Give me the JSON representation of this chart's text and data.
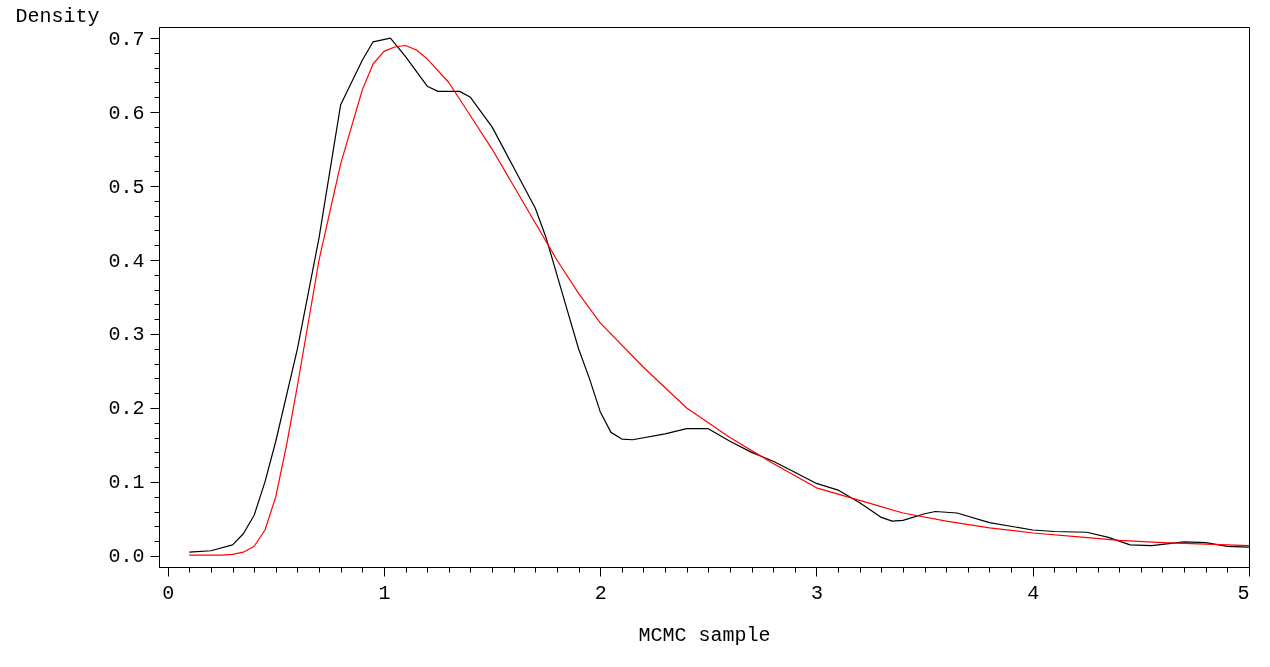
{
  "chart_data": {
    "type": "line",
    "xlabel": "MCMC sample",
    "ylabel": "Density",
    "xlim": [
      -0.04,
      5.0
    ],
    "ylim": [
      -0.015,
      0.715
    ],
    "xticks": [
      0,
      {
        "value": 0.1,
        "label": null
      },
      {
        "value": 0.2,
        "label": null
      },
      {
        "value": 0.3,
        "label": null
      },
      {
        "value": 0.4,
        "label": null
      },
      {
        "value": 0.5,
        "label": null
      },
      {
        "value": 0.6,
        "label": null
      },
      {
        "value": 0.7,
        "label": null
      },
      {
        "value": 0.8,
        "label": null
      },
      {
        "value": 0.9,
        "label": null
      },
      1,
      {
        "value": 1.1,
        "label": null
      },
      {
        "value": 1.2,
        "label": null
      },
      {
        "value": 1.3,
        "label": null
      },
      {
        "value": 1.4,
        "label": null
      },
      {
        "value": 1.5,
        "label": null
      },
      {
        "value": 1.6,
        "label": null
      },
      {
        "value": 1.7,
        "label": null
      },
      {
        "value": 1.8,
        "label": null
      },
      {
        "value": 1.9,
        "label": null
      },
      2,
      {
        "value": 2.1,
        "label": null
      },
      {
        "value": 2.2,
        "label": null
      },
      {
        "value": 2.3,
        "label": null
      },
      {
        "value": 2.4,
        "label": null
      },
      {
        "value": 2.5,
        "label": null
      },
      {
        "value": 2.6,
        "label": null
      },
      {
        "value": 2.7,
        "label": null
      },
      {
        "value": 2.8,
        "label": null
      },
      {
        "value": 2.9,
        "label": null
      },
      3,
      {
        "value": 3.1,
        "label": null
      },
      {
        "value": 3.2,
        "label": null
      },
      {
        "value": 3.3,
        "label": null
      },
      {
        "value": 3.4,
        "label": null
      },
      {
        "value": 3.5,
        "label": null
      },
      {
        "value": 3.6,
        "label": null
      },
      {
        "value": 3.7,
        "label": null
      },
      {
        "value": 3.8,
        "label": null
      },
      {
        "value": 3.9,
        "label": null
      },
      4,
      {
        "value": 4.1,
        "label": null
      },
      {
        "value": 4.2,
        "label": null
      },
      {
        "value": 4.3,
        "label": null
      },
      {
        "value": 4.4,
        "label": null
      },
      {
        "value": 4.5,
        "label": null
      },
      {
        "value": 4.6,
        "label": null
      },
      {
        "value": 4.7,
        "label": null
      },
      {
        "value": 4.8,
        "label": null
      },
      {
        "value": 4.9,
        "label": null
      },
      5
    ],
    "yticks": [
      {
        "value": 0,
        "label": "0.0"
      },
      {
        "value": 0.02,
        "label": null
      },
      {
        "value": 0.04,
        "label": null
      },
      {
        "value": 0.06,
        "label": null
      },
      {
        "value": 0.08,
        "label": null
      },
      0.1,
      {
        "value": 0.12,
        "label": null
      },
      {
        "value": 0.14,
        "label": null
      },
      {
        "value": 0.16,
        "label": null
      },
      {
        "value": 0.18,
        "label": null
      },
      0.2,
      {
        "value": 0.22,
        "label": null
      },
      {
        "value": 0.24,
        "label": null
      },
      {
        "value": 0.26,
        "label": null
      },
      {
        "value": 0.28,
        "label": null
      },
      0.3,
      {
        "value": 0.32,
        "label": null
      },
      {
        "value": 0.34,
        "label": null
      },
      {
        "value": 0.36,
        "label": null
      },
      {
        "value": 0.38,
        "label": null
      },
      0.4,
      {
        "value": 0.42,
        "label": null
      },
      {
        "value": 0.44,
        "label": null
      },
      {
        "value": 0.46,
        "label": null
      },
      {
        "value": 0.48,
        "label": null
      },
      0.5,
      {
        "value": 0.52,
        "label": null
      },
      {
        "value": 0.54,
        "label": null
      },
      {
        "value": 0.56,
        "label": null
      },
      {
        "value": 0.58,
        "label": null
      },
      0.6,
      {
        "value": 0.62,
        "label": null
      },
      {
        "value": 0.64,
        "label": null
      },
      {
        "value": 0.66,
        "label": null
      },
      {
        "value": 0.68,
        "label": null
      },
      0.7
    ],
    "grid": false,
    "marker": "none",
    "line_style": "solid",
    "series": [
      {
        "color": "#000000",
        "x": [
          0.1,
          0.2,
          0.3,
          0.35,
          0.4,
          0.45,
          0.5,
          0.6,
          0.7,
          0.8,
          0.9,
          0.95,
          1.03,
          1.1,
          1.15,
          1.2,
          1.25,
          1.35,
          1.4,
          1.45,
          1.5,
          1.6,
          1.7,
          1.75,
          1.85,
          1.9,
          1.95,
          2.0,
          2.05,
          2.1,
          2.15,
          2.3,
          2.4,
          2.5,
          2.6,
          2.7,
          2.8,
          2.9,
          3.0,
          3.1,
          3.2,
          3.3,
          3.35,
          3.4,
          3.5,
          3.55,
          3.65,
          3.8,
          4.0,
          4.1,
          4.25,
          4.35,
          4.45,
          4.55,
          4.7,
          4.8,
          4.9,
          5.0
        ],
        "values": [
          0.005,
          0.007,
          0.015,
          0.03,
          0.055,
          0.1,
          0.155,
          0.28,
          0.43,
          0.61,
          0.67,
          0.695,
          0.7,
          0.675,
          0.655,
          0.635,
          0.628,
          0.628,
          0.62,
          0.6,
          0.58,
          0.525,
          0.47,
          0.43,
          0.33,
          0.28,
          0.24,
          0.195,
          0.167,
          0.158,
          0.157,
          0.165,
          0.172,
          0.172,
          0.155,
          0.14,
          0.128,
          0.113,
          0.098,
          0.089,
          0.072,
          0.052,
          0.047,
          0.048,
          0.057,
          0.06,
          0.058,
          0.045,
          0.035,
          0.033,
          0.032,
          0.025,
          0.015,
          0.014,
          0.019,
          0.018,
          0.013,
          0.012
        ]
      },
      {
        "color": "#ff0000",
        "x": [
          0.1,
          0.25,
          0.3,
          0.35,
          0.4,
          0.45,
          0.5,
          0.55,
          0.6,
          0.7,
          0.8,
          0.85,
          0.9,
          0.95,
          1.0,
          1.05,
          1.1,
          1.15,
          1.2,
          1.3,
          1.4,
          1.5,
          1.6,
          1.7,
          1.8,
          1.9,
          2.0,
          2.2,
          2.4,
          2.6,
          2.8,
          3.0,
          3.2,
          3.4,
          3.6,
          3.8,
          4.0,
          4.2,
          4.4,
          4.6,
          4.8,
          5.0
        ],
        "values": [
          0.001,
          0.001,
          0.002,
          0.005,
          0.013,
          0.035,
          0.08,
          0.15,
          0.23,
          0.4,
          0.53,
          0.58,
          0.63,
          0.665,
          0.682,
          0.688,
          0.69,
          0.684,
          0.672,
          0.64,
          0.595,
          0.55,
          0.5,
          0.45,
          0.4,
          0.355,
          0.315,
          0.255,
          0.2,
          0.16,
          0.125,
          0.092,
          0.075,
          0.058,
          0.047,
          0.038,
          0.031,
          0.026,
          0.021,
          0.018,
          0.016,
          0.014
        ]
      }
    ]
  }
}
